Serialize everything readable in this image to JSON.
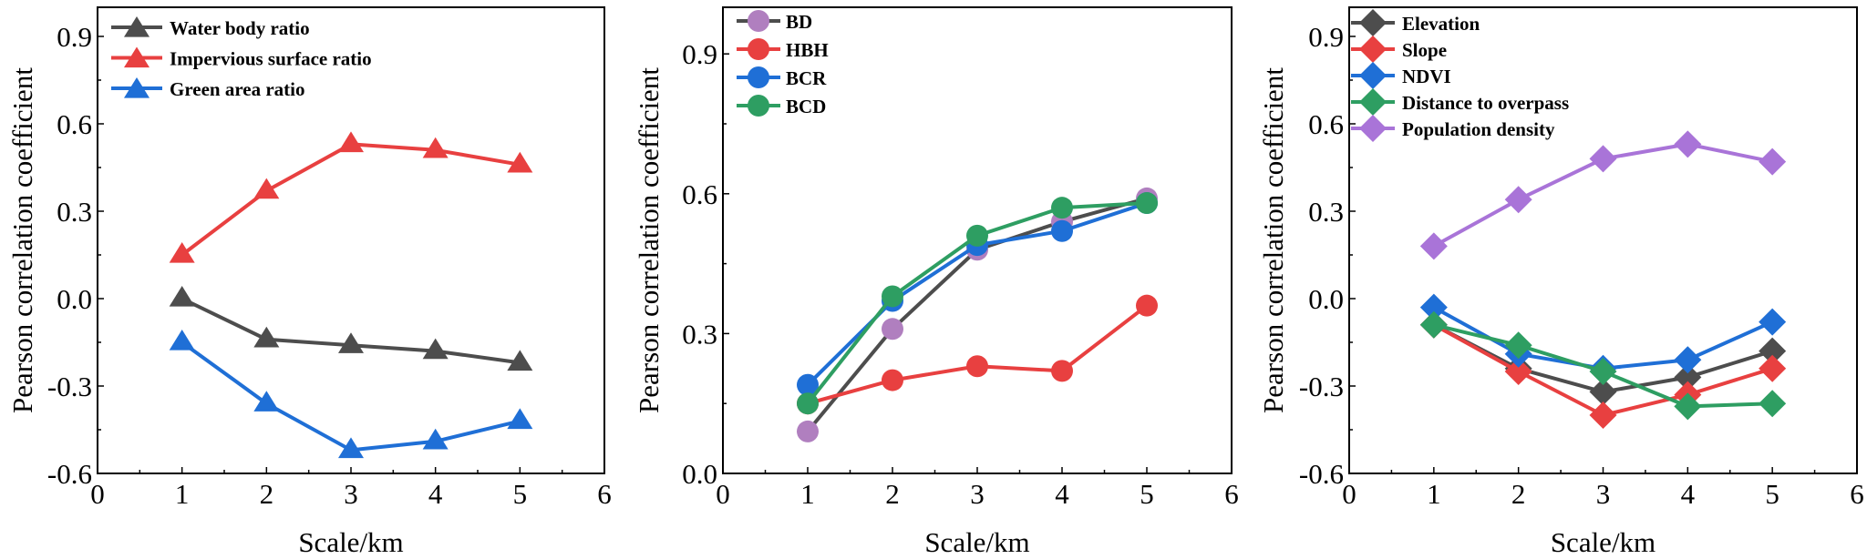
{
  "chart_data": [
    {
      "type": "line",
      "xlabel": "Scale/km",
      "ylabel": "Pearson correlation coefficient",
      "xlim": [
        0,
        6
      ],
      "ylim": [
        -0.6,
        1.0
      ],
      "xticks": [
        0,
        1,
        2,
        3,
        4,
        5,
        6
      ],
      "xtick_labels": [
        "0",
        "1",
        "2",
        "3",
        "4",
        "5",
        "6"
      ],
      "yticks": [
        -0.6,
        -0.3,
        0.0,
        0.3,
        0.6,
        0.9
      ],
      "ytick_labels": [
        "-0.6",
        "-0.3",
        "0.0",
        "0.3",
        "0.6",
        "0.9"
      ],
      "marker": "triangle",
      "legend_position": "top-left",
      "grid": false,
      "x": [
        1,
        2,
        3,
        4,
        5
      ],
      "series": [
        {
          "name": "Water body ratio",
          "line_color": "#4d4d4d",
          "marker_color": "#4d4d4d",
          "values": [
            0.0,
            -0.14,
            -0.16,
            -0.18,
            -0.22
          ]
        },
        {
          "name": "Impervious surface ratio",
          "line_color": "#e84040",
          "marker_color": "#e84040",
          "values": [
            0.15,
            0.37,
            0.53,
            0.51,
            0.46
          ]
        },
        {
          "name": "Green area ratio",
          "line_color": "#1f6fd6",
          "marker_color": "#1f6fd6",
          "values": [
            -0.15,
            -0.36,
            -0.52,
            -0.49,
            -0.42
          ]
        }
      ]
    },
    {
      "type": "line",
      "xlabel": "Scale/km",
      "ylabel": "Pearson correlation coefficient",
      "xlim": [
        0,
        6
      ],
      "ylim": [
        0.0,
        1.0
      ],
      "xticks": [
        0,
        1,
        2,
        3,
        4,
        5,
        6
      ],
      "xtick_labels": [
        "0",
        "1",
        "2",
        "3",
        "4",
        "5",
        "6"
      ],
      "yticks": [
        0.0,
        0.3,
        0.6,
        0.9
      ],
      "ytick_labels": [
        "0.0",
        "0.3",
        "0.6",
        "0.9"
      ],
      "marker": "circle",
      "legend_position": "top-left",
      "grid": false,
      "x": [
        1,
        2,
        3,
        4,
        5
      ],
      "series": [
        {
          "name": "BD",
          "line_color": "#4d4d4d",
          "marker_color": "#b07fbf",
          "values": [
            0.09,
            0.31,
            0.48,
            0.54,
            0.59
          ]
        },
        {
          "name": "HBH",
          "line_color": "#e84040",
          "marker_color": "#e84040",
          "values": [
            0.15,
            0.2,
            0.23,
            0.22,
            0.36
          ]
        },
        {
          "name": "BCR",
          "line_color": "#1f6fd6",
          "marker_color": "#1f6fd6",
          "values": [
            0.19,
            0.37,
            0.49,
            0.52,
            0.58
          ]
        },
        {
          "name": "BCD",
          "line_color": "#2e9e62",
          "marker_color": "#2e9e62",
          "values": [
            0.15,
            0.38,
            0.51,
            0.57,
            0.58
          ]
        }
      ]
    },
    {
      "type": "line",
      "xlabel": "Scale/km",
      "ylabel": "Pearson correlation coefficient",
      "xlim": [
        0,
        6
      ],
      "ylim": [
        -0.6,
        1.0
      ],
      "xticks": [
        0,
        1,
        2,
        3,
        4,
        5,
        6
      ],
      "xtick_labels": [
        "0",
        "1",
        "2",
        "3",
        "4",
        "5",
        "6"
      ],
      "yticks": [
        -0.6,
        -0.3,
        0.0,
        0.3,
        0.6,
        0.9
      ],
      "ytick_labels": [
        "-0.6",
        "-0.3",
        "0.0",
        "0.3",
        "0.6",
        "0.9"
      ],
      "marker": "diamond",
      "legend_position": "top-left",
      "grid": false,
      "x": [
        1,
        2,
        3,
        4,
        5
      ],
      "series": [
        {
          "name": "Elevation",
          "line_color": "#4d4d4d",
          "marker_color": "#4d4d4d",
          "values": [
            -0.09,
            -0.24,
            -0.32,
            -0.27,
            -0.18
          ]
        },
        {
          "name": "Slope",
          "line_color": "#e84040",
          "marker_color": "#e84040",
          "values": [
            -0.09,
            -0.25,
            -0.4,
            -0.33,
            -0.24
          ]
        },
        {
          "name": "NDVI",
          "line_color": "#1f6fd6",
          "marker_color": "#1f6fd6",
          "values": [
            -0.03,
            -0.19,
            -0.24,
            -0.21,
            -0.08
          ]
        },
        {
          "name": "Distance to overpass",
          "line_color": "#2e9e62",
          "marker_color": "#2e9e62",
          "values": [
            -0.09,
            -0.16,
            -0.25,
            -0.37,
            -0.36
          ]
        },
        {
          "name": "Population density",
          "line_color": "#a974d8",
          "marker_color": "#a974d8",
          "values": [
            0.18,
            0.34,
            0.48,
            0.53,
            0.47
          ]
        }
      ]
    }
  ]
}
